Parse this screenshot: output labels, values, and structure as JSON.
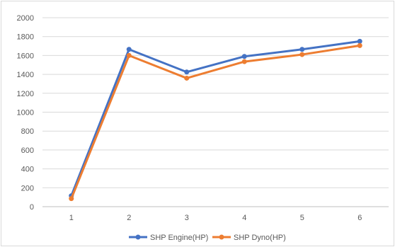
{
  "chart_data": {
    "type": "line",
    "title": "",
    "xlabel": "",
    "ylabel": "",
    "x": [
      1,
      2,
      3,
      4,
      5,
      6
    ],
    "ylim": [
      0,
      2000
    ],
    "yticks": [
      0,
      200,
      400,
      600,
      800,
      1000,
      1200,
      1400,
      1600,
      1800,
      2000
    ],
    "grid": "horizontal",
    "legend_position": "bottom",
    "series": [
      {
        "name": "SHP Engine(HP)",
        "color": "#4472c4",
        "values": [
          115,
          1665,
          1425,
          1590,
          1665,
          1750
        ]
      },
      {
        "name": "SHP Dyno(HP)",
        "color": "#ed7d31",
        "values": [
          85,
          1600,
          1360,
          1535,
          1610,
          1705
        ]
      }
    ]
  }
}
